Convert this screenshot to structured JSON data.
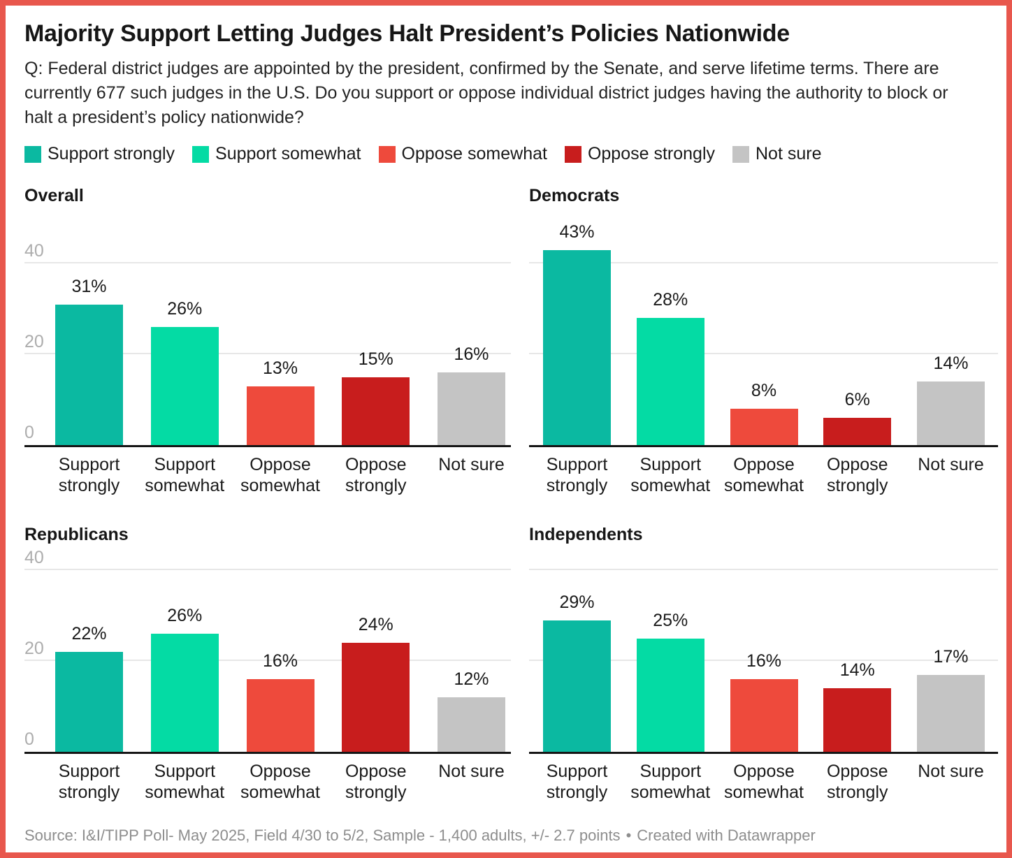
{
  "style": {
    "frame_color": "#e8574d",
    "baseline_color": "#161616",
    "gridline_color": "#e7e7e7"
  },
  "header": {
    "title": "Majority Support Letting Judges Halt President’s Policies Nationwide",
    "question": "Q: Federal district judges are appointed by the president, confirmed by the Senate, and serve lifetime terms. There are currently 677 such judges in the U.S. Do you support or oppose individual district judges having the authority to block or halt a president’s policy nationwide?"
  },
  "legend": {
    "items": [
      {
        "label": "Support strongly",
        "color": "#0bb9a1"
      },
      {
        "label": "Support somewhat",
        "color": "#04dba4"
      },
      {
        "label": "Oppose somewhat",
        "color": "#ee4a3c"
      },
      {
        "label": "Oppose strongly",
        "color": "#c81d1d"
      },
      {
        "label": "Not sure",
        "color": "#c4c4c4"
      }
    ]
  },
  "chart_data": {
    "type": "bar",
    "title": "Majority Support Letting Judges Halt President’s Policies Nationwide",
    "layout": "2x2 small multiples",
    "categories": [
      "Support strongly",
      "Support somewhat",
      "Oppose somewhat",
      "Oppose strongly",
      "Not sure"
    ],
    "category_lines": [
      [
        "Support",
        "strongly"
      ],
      [
        "Support",
        "somewhat"
      ],
      [
        "Oppose",
        "somewhat"
      ],
      [
        "Oppose",
        "strongly"
      ],
      [
        "Not sure",
        ""
      ]
    ],
    "colors": [
      "#0bb9a1",
      "#04dba4",
      "#ee4a3c",
      "#c81d1d",
      "#c4c4c4"
    ],
    "unit": "%",
    "ylim": [
      0,
      44
    ],
    "yticks": [
      0,
      20,
      40
    ],
    "grid": "horizontal gridlines at 20 and 40, black baseline at 0",
    "legend_position": "top",
    "panels": [
      {
        "name": "Overall",
        "values": [
          31,
          26,
          13,
          15,
          16
        ],
        "value_labels": [
          "31%",
          "26%",
          "13%",
          "15%",
          "16%"
        ],
        "ytick_labels": [
          "40",
          "20",
          "0"
        ]
      },
      {
        "name": "Democrats",
        "values": [
          43,
          28,
          8,
          6,
          14
        ],
        "value_labels": [
          "43%",
          "28%",
          "8%",
          "6%",
          "14%"
        ],
        "ytick_labels": []
      },
      {
        "name": "Republicans",
        "values": [
          22,
          26,
          16,
          24,
          12
        ],
        "value_labels": [
          "22%",
          "26%",
          "16%",
          "24%",
          "12%"
        ],
        "ytick_labels": [
          "40",
          "20",
          "0"
        ]
      },
      {
        "name": "Independents",
        "values": [
          29,
          25,
          16,
          14,
          17
        ],
        "value_labels": [
          "29%",
          "25%",
          "16%",
          "14%",
          "17%"
        ],
        "ytick_labels": []
      }
    ]
  },
  "footer": {
    "source": "Source: I&I/TIPP Poll- May 2025, Field 4/30 to 5/2, Sample - 1,400 adults, +/- 2.7 points",
    "separator": "•",
    "credit": "Created with Datawrapper"
  }
}
